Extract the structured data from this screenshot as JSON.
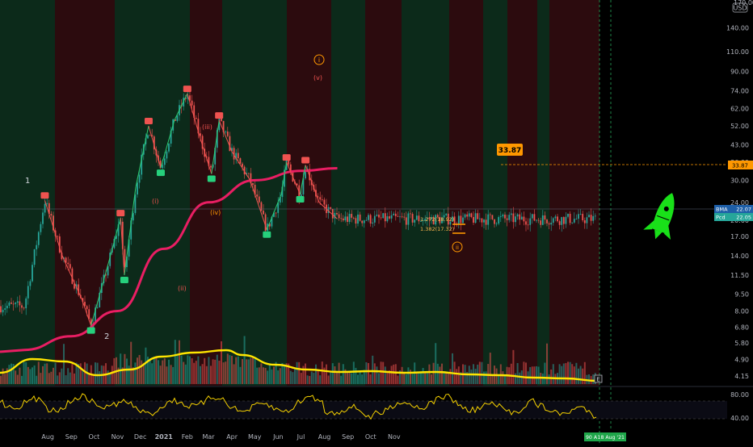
{
  "header": {
    "currency": "USD",
    "top_partial_label": "170.00"
  },
  "colors": {
    "background": "#000000",
    "bull_zone": "#0c2a1a",
    "bear_zone": "#2c0b0e",
    "up_candle": "#26a69a",
    "down_candle": "#ef5350",
    "ma_line": "#e91e63",
    "wave_up": "#2ecc71",
    "wave_down": "#ef5350",
    "volume_ma": "#ffe600",
    "oscillator": "#f5d100",
    "fib": "#ff9800",
    "rocket": "#19e019"
  },
  "axis": {
    "price_ticks": [
      "140.00",
      "110.00",
      "90.00",
      "74.00",
      "62.00",
      "52.00",
      "43.00",
      "36.00",
      "30.00",
      "24.00",
      "20.00",
      "17.00",
      "14.00",
      "11.50",
      "9.50",
      "8.00",
      "6.80",
      "5.80",
      "4.90",
      "4.15"
    ],
    "oscillator_ticks": [
      "80.00",
      "40.00"
    ],
    "time_ticks": [
      "Aug",
      "Sep",
      "Oct",
      "Nov",
      "Dec",
      "2021",
      "Feb",
      "Mar",
      "Apr",
      "May",
      "Jun",
      "Jul",
      "Aug",
      "Sep",
      "Oct",
      "Nov"
    ],
    "date_badge": "18 Aug '21",
    "price_badge_prefix": "90 A"
  },
  "badges": {
    "level_callout": "33.87",
    "level_axis": "33.87",
    "bma_label": "BMA",
    "bma_value": "22.07",
    "last_label": "Pcd",
    "last_value": "22.05"
  },
  "wave_labels": {
    "w1": "1",
    "w2": "2",
    "wi": "(i)",
    "wii": "(ii)",
    "wiii": "(iii)",
    "wiv": "(iv)",
    "wv": "(v)",
    "wave_i": "i",
    "wave_ii": "ii"
  },
  "fib": {
    "f1": "1.272(18.92)",
    "f2": "1.382(17.32)"
  },
  "markers": {
    "event": "E"
  },
  "chart_data": {
    "type": "line",
    "title": "",
    "xlabel": "",
    "ylabel": "",
    "y_scale": "log",
    "currency": "USD",
    "ylim": [
      4,
      170
    ],
    "x_ticks": [
      "Aug",
      "Sep",
      "Oct",
      "Nov",
      "Dec",
      "2021",
      "Feb",
      "Mar",
      "Apr",
      "May",
      "Jun",
      "Jul",
      "Aug",
      "Sep",
      "Oct",
      "Nov"
    ],
    "series": [
      {
        "values": [
          {
            "x": "2020-07-01",
            "y": 8.4
          },
          {
            "x": "2020-07-28",
            "y": 24.5
          },
          {
            "x": "2020-08-20",
            "y": 14
          },
          {
            "x": "2020-09-15",
            "y": 9
          },
          {
            "x": "2020-09-27",
            "y": 6.9
          },
          {
            "x": "2020-10-20",
            "y": 13
          },
          {
            "x": "2020-11-05",
            "y": 20.5
          },
          {
            "x": "2020-11-10",
            "y": 11.5
          },
          {
            "x": "2020-11-25",
            "y": 28
          },
          {
            "x": "2020-12-12",
            "y": 52
          },
          {
            "x": "2020-12-28",
            "y": 34
          },
          {
            "x": "2021-01-15",
            "y": 55
          },
          {
            "x": "2021-02-01",
            "y": 72
          },
          {
            "x": "2021-02-18",
            "y": 46
          },
          {
            "x": "2021-03-05",
            "y": 32
          },
          {
            "x": "2021-03-15",
            "y": 55
          },
          {
            "x": "2021-04-01",
            "y": 40
          },
          {
            "x": "2021-04-25",
            "y": 30
          },
          {
            "x": "2021-05-17",
            "y": 18.2
          },
          {
            "x": "2021-06-05",
            "y": 26
          },
          {
            "x": "2021-06-12",
            "y": 36
          },
          {
            "x": "2021-06-30",
            "y": 26
          },
          {
            "x": "2021-07-07",
            "y": 35
          },
          {
            "x": "2021-07-25",
            "y": 24
          },
          {
            "x": "2021-08-18",
            "y": 20.3
          }
        ]
      }
    ],
    "moving_average": [
      {
        "x": "2020-07-01",
        "y": 5.4
      },
      {
        "x": "2020-09-01",
        "y": 6.2
      },
      {
        "x": "2020-11-01",
        "y": 8.0
      },
      {
        "x": "2021-01-01",
        "y": 15.0
      },
      {
        "x": "2021-03-01",
        "y": 24.0
      },
      {
        "x": "2021-05-01",
        "y": 30.0
      },
      {
        "x": "2021-07-01",
        "y": 33.0
      },
      {
        "x": "2021-08-18",
        "y": 33.9
      }
    ],
    "annotations": [
      "33.87",
      "1.272(18.92)",
      "1.382(17.32)"
    ]
  }
}
